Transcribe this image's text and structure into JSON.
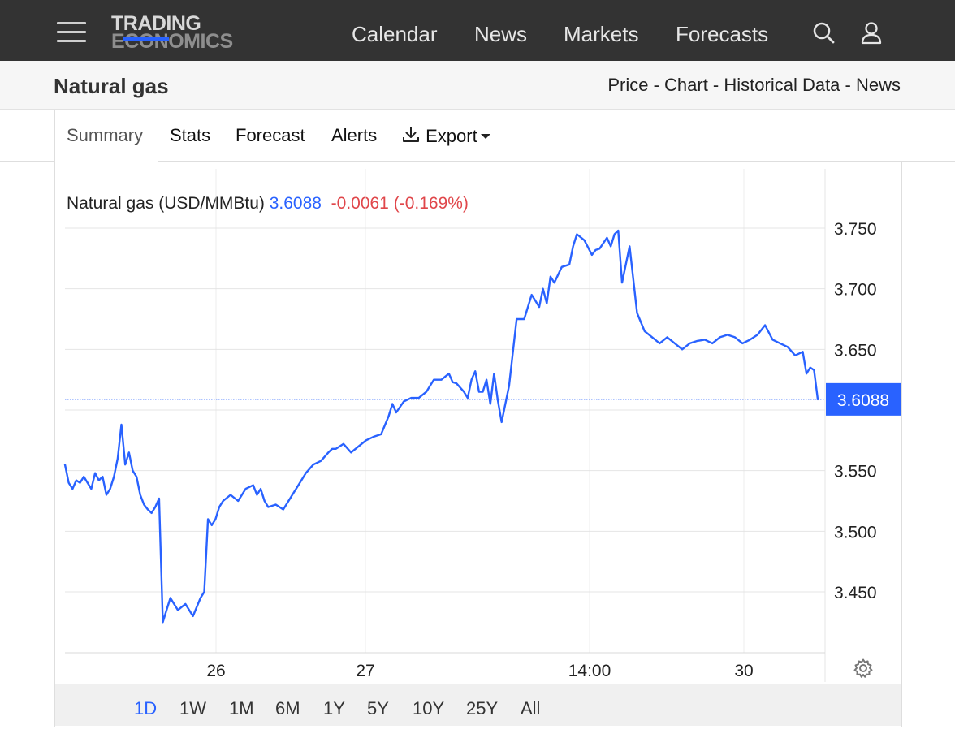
{
  "header": {
    "logo_line1": "TRADING",
    "logo_line2": "ECONOMICS",
    "nav": [
      "Calendar",
      "News",
      "Markets",
      "Forecasts"
    ],
    "icons": [
      "menu-icon",
      "search-icon",
      "user-icon"
    ]
  },
  "page": {
    "title": "Natural gas",
    "breadcrumbs": [
      "Price",
      "Chart",
      "Historical Data",
      "News"
    ],
    "breadcrumb_separator": " - "
  },
  "tabs": {
    "items": [
      "Summary",
      "Stats",
      "Forecast",
      "Alerts"
    ],
    "export_label": "Export",
    "active": "Summary"
  },
  "quote": {
    "name": "Natural gas (USD/MMBtu)",
    "price": "3.6088",
    "change": "-0.0061",
    "change_pct": "(-0.169%)",
    "last_label": "3.6088"
  },
  "ranges": {
    "items": [
      "1D",
      "1W",
      "1M",
      "6M",
      "1Y",
      "5Y",
      "10Y",
      "25Y",
      "All"
    ],
    "active": "1D"
  },
  "colors": {
    "line": "#2962ff",
    "negative": "#e0464a",
    "header_bg": "#333333"
  },
  "chart_data": {
    "type": "line",
    "title": "Natural gas (USD/MMBtu)",
    "xlabel": "",
    "ylabel": "",
    "x_ticks": [
      "26",
      "27",
      "14:00",
      "30"
    ],
    "y_ticks": [
      3.45,
      3.5,
      3.55,
      3.6,
      3.65,
      3.7,
      3.75
    ],
    "y_tick_labels": [
      "3.450",
      "3.500",
      "3.550",
      "",
      "3.650",
      "3.700",
      "3.750"
    ],
    "ylim": [
      3.42,
      3.77
    ],
    "grid": true,
    "last_value": 3.6088,
    "x_index_range": [
      0,
      100
    ],
    "x_tick_positions": [
      20,
      40,
      70,
      90.5
    ],
    "series": [
      {
        "x": [
          0,
          0.5,
          1,
          1.5,
          2,
          2.5,
          3,
          3.5,
          4,
          4.5,
          5,
          5.5,
          6,
          6.5,
          7,
          7.5,
          8,
          8.5,
          9,
          9.5,
          10,
          10.5,
          11,
          11.5,
          12,
          12.5,
          13,
          13.5,
          14,
          15,
          16,
          17,
          18,
          18.5,
          19,
          19.5,
          20,
          20.5,
          21,
          22,
          23,
          24,
          25,
          25.5,
          26,
          26.5,
          27,
          28,
          29,
          30,
          31,
          32,
          33,
          34,
          35,
          35.5,
          36,
          37,
          38,
          39,
          40,
          41,
          42,
          43,
          43.5,
          44,
          45,
          46,
          47,
          48,
          49,
          50,
          51,
          51.5,
          52,
          53,
          53.5,
          54,
          54.5,
          55,
          55.5,
          56,
          56.5,
          57,
          57.5,
          58,
          59,
          60,
          61,
          62,
          62.5,
          63,
          63.5,
          64,
          64.5,
          65,
          66,
          67,
          67.5,
          68,
          69,
          70,
          70.5,
          71,
          72,
          72.5,
          73,
          73.5,
          74,
          75,
          76,
          77,
          78,
          79,
          80,
          81,
          82,
          83,
          84,
          85,
          86,
          87,
          88,
          89,
          90,
          91,
          92,
          93,
          94,
          95,
          96,
          97,
          98,
          98.5,
          99,
          99.5,
          100
        ],
        "y": [
          3.555,
          3.54,
          3.535,
          3.542,
          3.54,
          3.545,
          3.54,
          3.535,
          3.548,
          3.542,
          3.545,
          3.53,
          3.535,
          3.545,
          3.56,
          3.588,
          3.555,
          3.565,
          3.55,
          3.545,
          3.53,
          3.522,
          3.518,
          3.515,
          3.52,
          3.527,
          3.425,
          3.435,
          3.445,
          3.435,
          3.44,
          3.43,
          3.445,
          3.45,
          3.51,
          3.505,
          3.51,
          3.52,
          3.525,
          3.53,
          3.525,
          3.535,
          3.538,
          3.53,
          3.535,
          3.525,
          3.52,
          3.522,
          3.518,
          3.528,
          3.538,
          3.548,
          3.555,
          3.558,
          3.565,
          3.568,
          3.568,
          3.572,
          3.565,
          3.57,
          3.575,
          3.578,
          3.58,
          3.595,
          3.605,
          3.598,
          3.607,
          3.61,
          3.61,
          3.615,
          3.625,
          3.625,
          3.63,
          3.623,
          3.622,
          3.615,
          3.61,
          3.625,
          3.632,
          3.615,
          3.615,
          3.625,
          3.605,
          3.63,
          3.608,
          3.59,
          3.62,
          3.675,
          3.675,
          3.695,
          3.69,
          3.685,
          3.7,
          3.688,
          3.71,
          3.705,
          3.718,
          3.72,
          3.735,
          3.745,
          3.74,
          3.728,
          3.732,
          3.733,
          3.742,
          3.735,
          3.745,
          3.748,
          3.705,
          3.735,
          3.68,
          3.665,
          3.66,
          3.655,
          3.66,
          3.655,
          3.65,
          3.655,
          3.657,
          3.658,
          3.655,
          3.66,
          3.662,
          3.66,
          3.655,
          3.658,
          3.662,
          3.67,
          3.658,
          3.655,
          3.652,
          3.645,
          3.648,
          3.63,
          3.635,
          3.633,
          3.6088
        ]
      }
    ]
  }
}
